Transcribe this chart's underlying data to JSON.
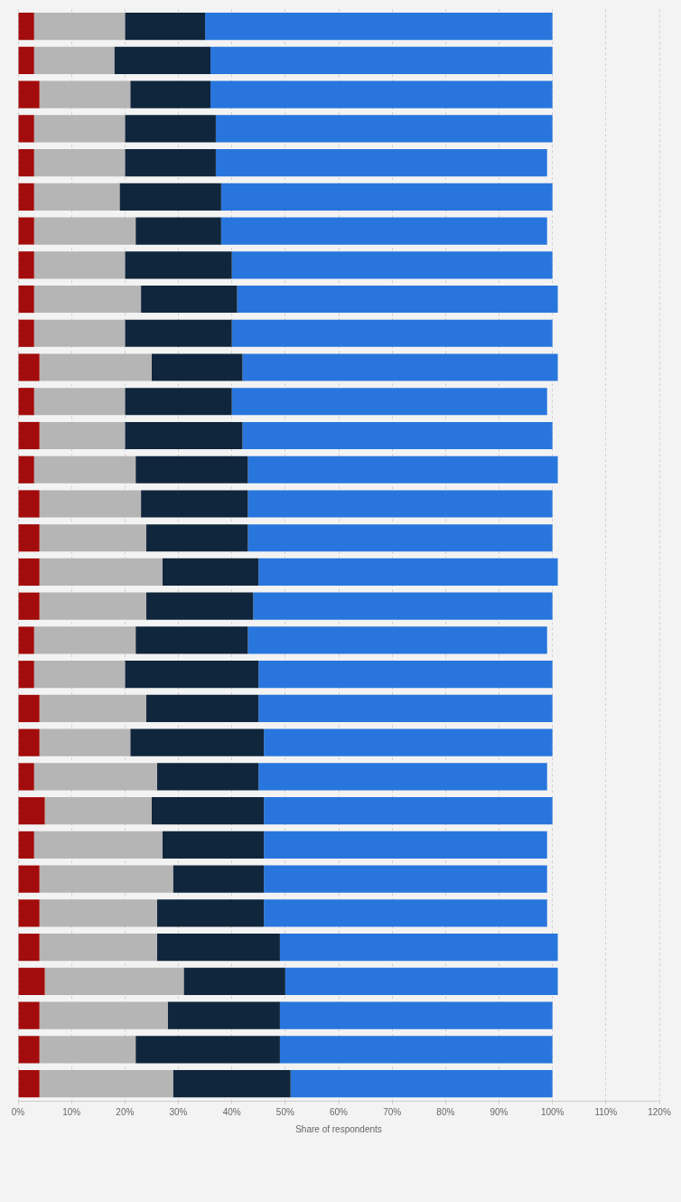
{
  "chart_data": {
    "type": "bar",
    "orientation": "horizontal",
    "stacked": true,
    "xlabel": "Share of respondents",
    "categories": [
      null,
      null,
      null,
      null,
      null,
      null,
      null,
      null,
      null,
      null,
      null,
      null,
      null,
      null,
      null,
      null,
      null,
      null,
      null,
      null,
      null,
      null,
      null,
      null,
      null,
      null,
      null,
      null,
      null,
      null,
      null,
      null
    ],
    "series": [
      {
        "color": "#a30c0c",
        "values": [
          3,
          3,
          4,
          3,
          3,
          3,
          3,
          3,
          3,
          3,
          4,
          3,
          4,
          3,
          4,
          4,
          4,
          4,
          3,
          3,
          4,
          4,
          3,
          5,
          3,
          4,
          4,
          4,
          5,
          4,
          4,
          4
        ]
      },
      {
        "color": "#b5b5b5",
        "values": [
          17,
          15,
          17,
          17,
          17,
          16,
          19,
          17,
          20,
          17,
          21,
          17,
          16,
          19,
          19,
          20,
          23,
          20,
          19,
          17,
          20,
          17,
          23,
          20,
          24,
          25,
          22,
          22,
          26,
          24,
          18,
          25
        ]
      },
      {
        "color": "#10263c",
        "values": [
          15,
          18,
          15,
          17,
          17,
          19,
          16,
          20,
          18,
          20,
          17,
          20,
          22,
          21,
          20,
          19,
          18,
          20,
          21,
          25,
          21,
          25,
          19,
          21,
          19,
          17,
          20,
          23,
          19,
          21,
          27,
          22
        ]
      },
      {
        "color": "#2876dd",
        "values": [
          65,
          64,
          64,
          63,
          62,
          62,
          61,
          60,
          60,
          60,
          59,
          59,
          58,
          58,
          57,
          57,
          56,
          56,
          56,
          55,
          55,
          54,
          54,
          54,
          53,
          53,
          53,
          52,
          51,
          51,
          51,
          49
        ]
      }
    ],
    "xlim": [
      0,
      120
    ],
    "xticks": [
      {
        "value": 0,
        "label": "0%"
      },
      {
        "value": 10,
        "label": "10%"
      },
      {
        "value": 20,
        "label": "20%"
      },
      {
        "value": 30,
        "label": "30%"
      },
      {
        "value": 40,
        "label": "40%"
      },
      {
        "value": 50,
        "label": "50%"
      },
      {
        "value": 60,
        "label": "60%"
      },
      {
        "value": 70,
        "label": "70%"
      },
      {
        "value": 80,
        "label": "80%"
      },
      {
        "value": 90,
        "label": "90%"
      },
      {
        "value": 100,
        "label": "100%"
      },
      {
        "value": 110,
        "label": "110%"
      },
      {
        "value": 120,
        "label": "120%"
      }
    ],
    "grid": "x",
    "legend": false
  }
}
